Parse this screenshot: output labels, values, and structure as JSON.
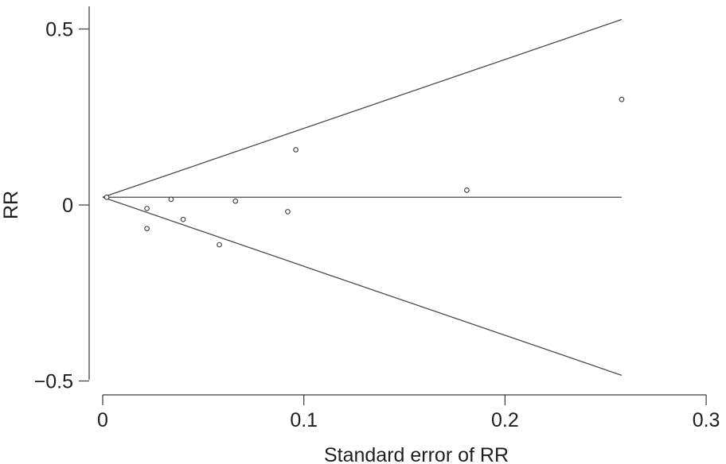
{
  "chart_data": {
    "type": "scatter",
    "title": "",
    "xlabel": "Standard error of RR",
    "ylabel": "RR",
    "xlim": [
      0,
      0.3
    ],
    "ylim": [
      -0.5,
      0.5
    ],
    "x_ticks": [
      0,
      0.1,
      0.2,
      0.3
    ],
    "x_tick_labels": [
      "0",
      "0.1",
      "0.2",
      "0.3"
    ],
    "y_ticks": [
      0.5,
      0,
      -0.5
    ],
    "y_tick_labels": [
      "0.5",
      "0",
      "−0.5"
    ],
    "grid": false,
    "points": [
      {
        "x": 0.002,
        "y": 0.022
      },
      {
        "x": 0.022,
        "y": -0.01
      },
      {
        "x": 0.022,
        "y": -0.067
      },
      {
        "x": 0.034,
        "y": 0.016
      },
      {
        "x": 0.04,
        "y": -0.041
      },
      {
        "x": 0.058,
        "y": -0.113
      },
      {
        "x": 0.066,
        "y": 0.011
      },
      {
        "x": 0.092,
        "y": -0.019
      },
      {
        "x": 0.096,
        "y": 0.157
      },
      {
        "x": 0.181,
        "y": 0.042
      },
      {
        "x": 0.258,
        "y": 0.3
      }
    ],
    "pooled_estimate": 0.022,
    "funnel": {
      "x_start": 0,
      "x_end": 0.258,
      "upper_end": 0.527,
      "lower_end": -0.484
    }
  }
}
